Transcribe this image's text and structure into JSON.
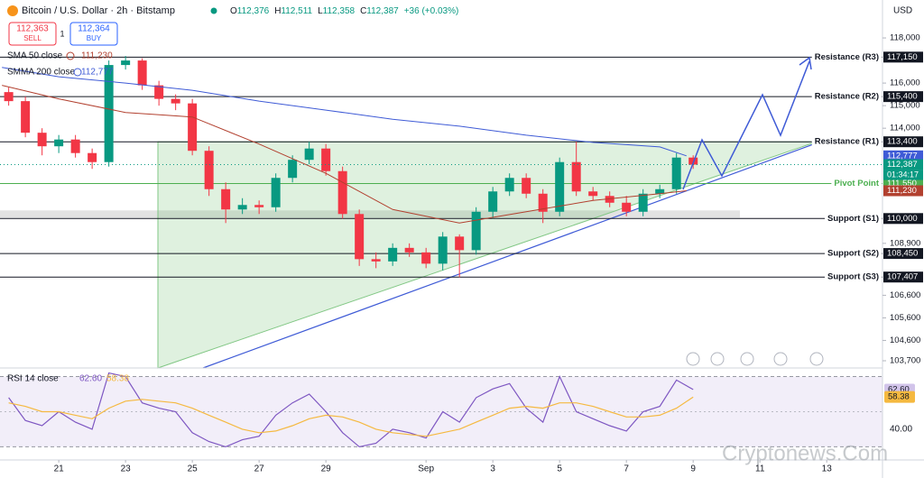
{
  "header": {
    "title": "Bitcoin / U.S. Dollar · 2h · Bitstamp",
    "ohlc": [
      {
        "key": "O",
        "value": "112,376"
      },
      {
        "key": "H",
        "value": "112,511"
      },
      {
        "key": "L",
        "value": "112,358"
      },
      {
        "key": "C",
        "value": "112,387"
      }
    ],
    "change": "+36 (+0.03%)",
    "sell": {
      "price": "112,363",
      "label": "SELL"
    },
    "quantity": "1",
    "buy": {
      "price": "112,364",
      "label": "BUY"
    },
    "currency": "USD",
    "watermark": "Cryptonews.Com"
  },
  "chart_data": [
    {
      "type": "candlestick",
      "up_color": "#089981",
      "down_color": "#f23645",
      "x": [
        19.5,
        20,
        20.5,
        21,
        21.5,
        22,
        22.5,
        23,
        23.5,
        24,
        24.5,
        25,
        25.5,
        26,
        26.5,
        27,
        27.5,
        28,
        28.5,
        29,
        29.5,
        30,
        30.5,
        31,
        31.5,
        32,
        32.5,
        33,
        33.5,
        34,
        34.5,
        35,
        35.5,
        36,
        36.5,
        37,
        37.5,
        38,
        38.5,
        39,
        39.5,
        40
      ],
      "open": [
        115600,
        115200,
        113800,
        113200,
        113500,
        112900,
        112500,
        116800,
        117000,
        115900,
        115300,
        115100,
        113000,
        111300,
        110400,
        110600,
        110500,
        111800,
        112600,
        113100,
        112100,
        110200,
        108200,
        108100,
        108700,
        108500,
        108000,
        109200,
        108600,
        110300,
        111200,
        111800,
        111100,
        110300,
        112500,
        111200,
        111000,
        110700,
        110300,
        111100,
        111300,
        112700
      ],
      "high": [
        115800,
        115400,
        114000,
        113700,
        113700,
        113100,
        117000,
        117200,
        117100,
        116100,
        115500,
        115300,
        113200,
        111600,
        110900,
        110800,
        112000,
        112800,
        113400,
        113300,
        112300,
        110400,
        108500,
        108900,
        108900,
        108700,
        109400,
        109300,
        110500,
        111400,
        112000,
        112000,
        111300,
        112700,
        113400,
        111400,
        111200,
        111000,
        111300,
        111500,
        112900,
        112800
      ],
      "low": [
        115000,
        113600,
        112800,
        112900,
        112700,
        112200,
        112300,
        116600,
        115700,
        115000,
        114800,
        112800,
        111000,
        109800,
        110200,
        110200,
        110300,
        111600,
        112400,
        111900,
        110000,
        107900,
        107800,
        107900,
        108300,
        107800,
        107700,
        107400,
        108400,
        110000,
        111000,
        110900,
        109800,
        110100,
        111000,
        110800,
        110500,
        110100,
        110100,
        110900,
        111100,
        112200
      ],
      "close": [
        115200,
        113800,
        113200,
        113500,
        112900,
        112500,
        116800,
        117000,
        115900,
        115300,
        115100,
        113000,
        111300,
        110400,
        110600,
        110500,
        111800,
        112600,
        113100,
        112100,
        110200,
        108200,
        108100,
        108700,
        108500,
        108000,
        109200,
        108600,
        110300,
        111200,
        111800,
        111100,
        110300,
        112500,
        111200,
        111000,
        110700,
        110300,
        111100,
        111300,
        112700,
        112387
      ],
      "price": {
        "value": 112387,
        "label": "112,387",
        "countdown": "01:34:17",
        "color": "#089981"
      },
      "series": [
        {
          "name": "SMA 50 close",
          "color": "#b2402f",
          "x": [
            19.3,
            21,
            23,
            25,
            27,
            29,
            31,
            33,
            35,
            37,
            39,
            39.8
          ],
          "values": [
            115900,
            115300,
            114700,
            114500,
            113300,
            112000,
            110400,
            109800,
            110300,
            110800,
            111100,
            111230
          ],
          "last": {
            "value": 111230,
            "label": "111,230"
          }
        },
        {
          "name": "SMMA 200 close",
          "color": "#3f5bd6",
          "x": [
            19.3,
            21,
            23,
            25,
            27,
            29,
            31,
            33,
            35,
            37,
            39,
            39.8
          ],
          "values": [
            116690,
            116280,
            116000,
            115680,
            115200,
            114800,
            114400,
            114090,
            113690,
            113370,
            113170,
            112777
          ],
          "last": {
            "value": 112777,
            "label": "112,777"
          }
        }
      ],
      "levels": [
        {
          "name": "Resistance (R3)",
          "value": 117150,
          "label": "117,150",
          "color": "#131722"
        },
        {
          "name": "Resistance (R2)",
          "value": 115400,
          "label": "115,400",
          "color": "#131722"
        },
        {
          "name": "Resistance (R1)",
          "value": 113400,
          "label": "113,400",
          "color": "#131722"
        },
        {
          "name": "Pivot Point",
          "value": 111550,
          "label": "111,550",
          "color": "#4caf50"
        },
        {
          "name": "Support (S1)",
          "value": 110000,
          "label": "110,000",
          "color": "#131722"
        },
        {
          "name": "Support (S2)",
          "value": 108450,
          "label": "108,450",
          "color": "#131722"
        },
        {
          "name": "Support (S3)",
          "value": 107407,
          "label": "107,407",
          "color": "#131722"
        }
      ],
      "xlim": [
        19.24,
        45.67
      ],
      "xticks": [
        21,
        23,
        25,
        27,
        29,
        {
          "value": 32,
          "label": "Sep"
        },
        {
          "value": 34,
          "label": "3"
        },
        {
          "value": 36,
          "label": "5"
        },
        {
          "value": 38,
          "label": "7"
        },
        {
          "value": 40,
          "label": "9"
        },
        {
          "value": 42,
          "label": "11"
        },
        {
          "value": 44,
          "label": "13"
        }
      ],
      "ylim": [
        103380,
        119680
      ],
      "yticks": [
        {
          "value": 118000,
          "label": "118,000"
        },
        {
          "value": 116000,
          "label": "116,000"
        },
        {
          "value": 115000,
          "label": "115,000"
        },
        {
          "value": 114000,
          "label": "114,000"
        },
        {
          "value": 108900,
          "label": "108,900"
        },
        {
          "value": 106600,
          "label": "106,600"
        },
        {
          "value": 105600,
          "label": "105,600"
        },
        {
          "value": 104600,
          "label": "104,600"
        },
        {
          "value": 103700,
          "label": "103,700"
        }
      ]
    },
    {
      "type": "line",
      "title": "RSI 14 close",
      "x": [
        19.5,
        20,
        20.5,
        21,
        21.5,
        22,
        22.5,
        23,
        23.5,
        24,
        24.5,
        25,
        25.5,
        26,
        26.5,
        27,
        27.5,
        28,
        28.5,
        29,
        29.5,
        30,
        30.5,
        31,
        31.5,
        32,
        32.5,
        33,
        33.5,
        34,
        34.5,
        35,
        35.5,
        36,
        36.5,
        37,
        37.5,
        38,
        38.5,
        39,
        39.5,
        40
      ],
      "series": [
        {
          "color": "#7e57c2",
          "values": [
            58,
            45,
            42,
            50,
            44,
            40,
            72,
            70,
            55,
            52,
            50,
            38,
            33,
            30,
            34,
            36,
            48,
            55,
            60,
            50,
            38,
            30,
            32,
            40,
            38,
            35,
            50,
            44,
            58,
            63,
            66,
            52,
            44,
            70,
            50,
            46,
            42,
            39,
            50,
            53,
            68,
            62.6
          ],
          "last": {
            "value": 62.6,
            "label": "62.60"
          }
        },
        {
          "color": "#f5b940",
          "values": [
            55,
            53,
            50,
            50,
            48,
            46,
            52,
            56,
            57,
            56,
            55,
            52,
            48,
            44,
            40,
            38,
            39,
            42,
            46,
            48,
            47,
            44,
            40,
            38,
            37,
            36,
            38,
            40,
            44,
            48,
            52,
            53,
            52,
            55,
            55,
            53,
            50,
            47,
            47,
            48,
            52,
            58.38
          ],
          "last": {
            "value": 58.38,
            "label": "58.38"
          }
        }
      ],
      "band": [
        30,
        70
      ],
      "midline": 50,
      "ylim": [
        22.5,
        74.9
      ],
      "yticks": [
        {
          "value": 40,
          "label": "40.00"
        }
      ]
    }
  ]
}
